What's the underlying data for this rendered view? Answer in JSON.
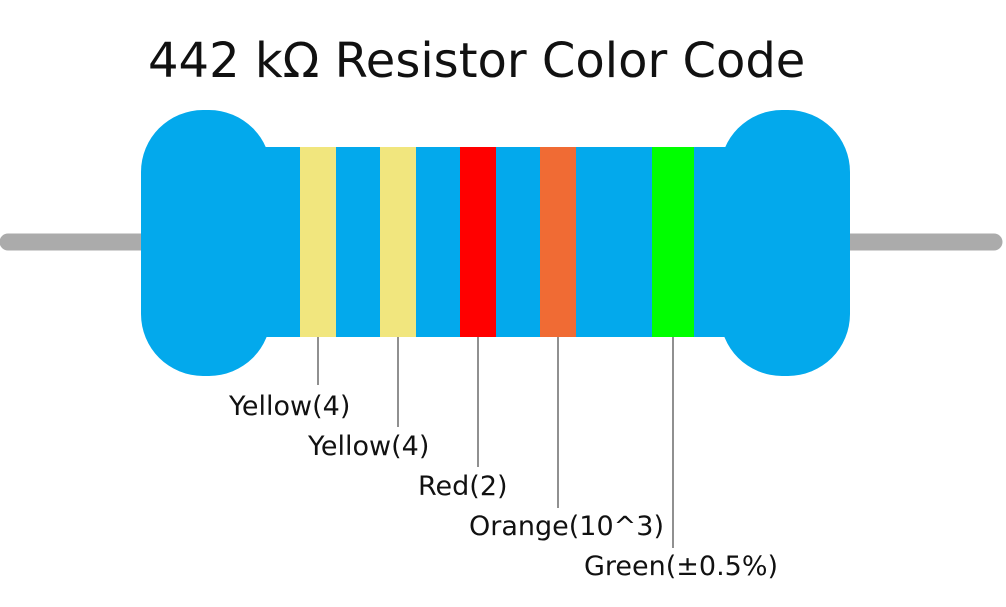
{
  "title": "442 kΩ Resistor Color Code",
  "colors": {
    "body": "#03A9EC",
    "lead": "#ABABAB",
    "label_line": "#222222"
  },
  "bands": [
    {
      "name": "band-1",
      "color": "#F1E67E",
      "label": "Yellow(4)"
    },
    {
      "name": "band-2",
      "color": "#F1E67E",
      "label": "Yellow(4)"
    },
    {
      "name": "band-3",
      "color": "#FF0000",
      "label": "Red(2)"
    },
    {
      "name": "multiplier-band",
      "color": "#F06B34",
      "label": "Orange(10^3)"
    },
    {
      "name": "tolerance-band",
      "color": "#00FF00",
      "label": "Green(±0.5%)"
    }
  ]
}
